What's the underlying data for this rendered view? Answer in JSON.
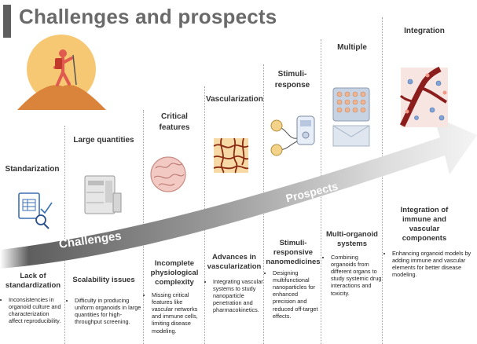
{
  "title": "Challenges and prospects",
  "arrow": {
    "challenges_label": "Challenges",
    "prospects_label": "Prospects"
  },
  "columns": [
    {
      "head": "Standarization",
      "subhead": "Lack of standardization",
      "bullet": "Inconsistencies in organoid culture and characterization affect reproducibility.",
      "icon": "document-search-icon"
    },
    {
      "head": "Large quantities",
      "subhead": "Scalability issues",
      "bullet": "Difficulty in producing uniform organoids in large quantities for high-throughput screening.",
      "icon": "incubator-machine-icon"
    },
    {
      "head": "Critical features",
      "subhead": "Incomplete physiological complexity",
      "bullet": "Missing critical features like vascular networks and immune cells, limiting disease modeling.",
      "icon": "brain-organoid-icon"
    },
    {
      "head": "Vascularization",
      "subhead": "Advances in vascularization",
      "bullet": "Integrating vascular systems to study nanoparticle penetration and pharmacokinetics.",
      "icon": "vascular-network-icon"
    },
    {
      "head": "Stimuli-response",
      "subhead": "Stimuli-responsive nanomedicines",
      "bullet": "Designing multifunctional nanoparticles for enhanced precision and reduced off-target effects.",
      "icon": "stimulator-device-icon"
    },
    {
      "head": "Multiple",
      "subhead": "Multi-organoid systems",
      "bullet": "Combining organoids from different organs to study systemic drug interactions and toxicity.",
      "icon": "well-plate-icon"
    },
    {
      "head": "Integration",
      "subhead": "Integration of immune and vascular components",
      "bullet": "Enhancing organoid models by adding immune and vascular elements for better disease modeling.",
      "icon": "blood-vessel-icon"
    }
  ],
  "colors": {
    "arrow_dark": "#6b6b6b",
    "arrow_light": "#f2f2f2",
    "sun": "#f7c873",
    "hill": "#d9843a",
    "hiker": "#e05a4f"
  }
}
